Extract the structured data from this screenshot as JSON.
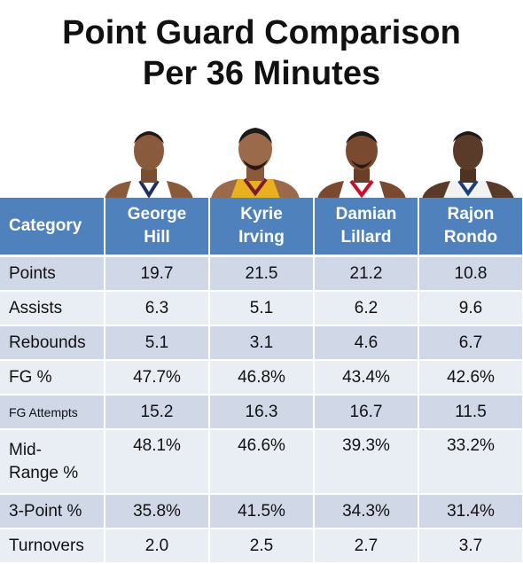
{
  "title": {
    "line1": "Point Guard Comparison",
    "line2": "Per 36 Minutes"
  },
  "header": {
    "category": "Category",
    "players": [
      {
        "first": "George",
        "last": "Hill",
        "jersey_color": "#ffffff",
        "trim_color": "#1e2f5e"
      },
      {
        "first": "Kyrie",
        "last": "Irving",
        "jersey_color": "#e8b020",
        "trim_color": "#7a1a2a"
      },
      {
        "first": "Damian",
        "last": "Lillard",
        "jersey_color": "#ffffff",
        "trim_color": "#c8102e"
      },
      {
        "first": "Rajon",
        "last": "Rondo",
        "jersey_color": "#f2f2f2",
        "trim_color": "#1d3f7a"
      }
    ]
  },
  "rows": [
    {
      "label": "Points",
      "values": [
        "19.7",
        "21.5",
        "21.2",
        "10.8"
      ]
    },
    {
      "label": "Assists",
      "values": [
        "6.3",
        "5.1",
        "6.2",
        "9.6"
      ]
    },
    {
      "label": "Rebounds",
      "values": [
        "5.1",
        "3.1",
        "4.6",
        "6.7"
      ]
    },
    {
      "label": "FG %",
      "values": [
        "47.7%",
        "46.8%",
        "43.4%",
        "42.6%"
      ]
    },
    {
      "label": "FG Attempts",
      "values": [
        "15.2",
        "16.3",
        "16.7",
        "11.5"
      ]
    },
    {
      "label": "Mid-Range %",
      "label_line1": "Mid-",
      "label_line2": "Range %",
      "values": [
        "48.1%",
        "46.6%",
        "39.3%",
        "33.2%"
      ]
    },
    {
      "label": "3-Point %",
      "values": [
        "35.8%",
        "41.5%",
        "34.3%",
        "31.4%"
      ]
    },
    {
      "label": "Turnovers",
      "values": [
        "2.0",
        "2.5",
        "2.7",
        "3.7"
      ]
    }
  ],
  "colors": {
    "header_bg": "#4f81bd",
    "row_odd": "#d0d8e8",
    "row_even": "#e9edf4"
  }
}
